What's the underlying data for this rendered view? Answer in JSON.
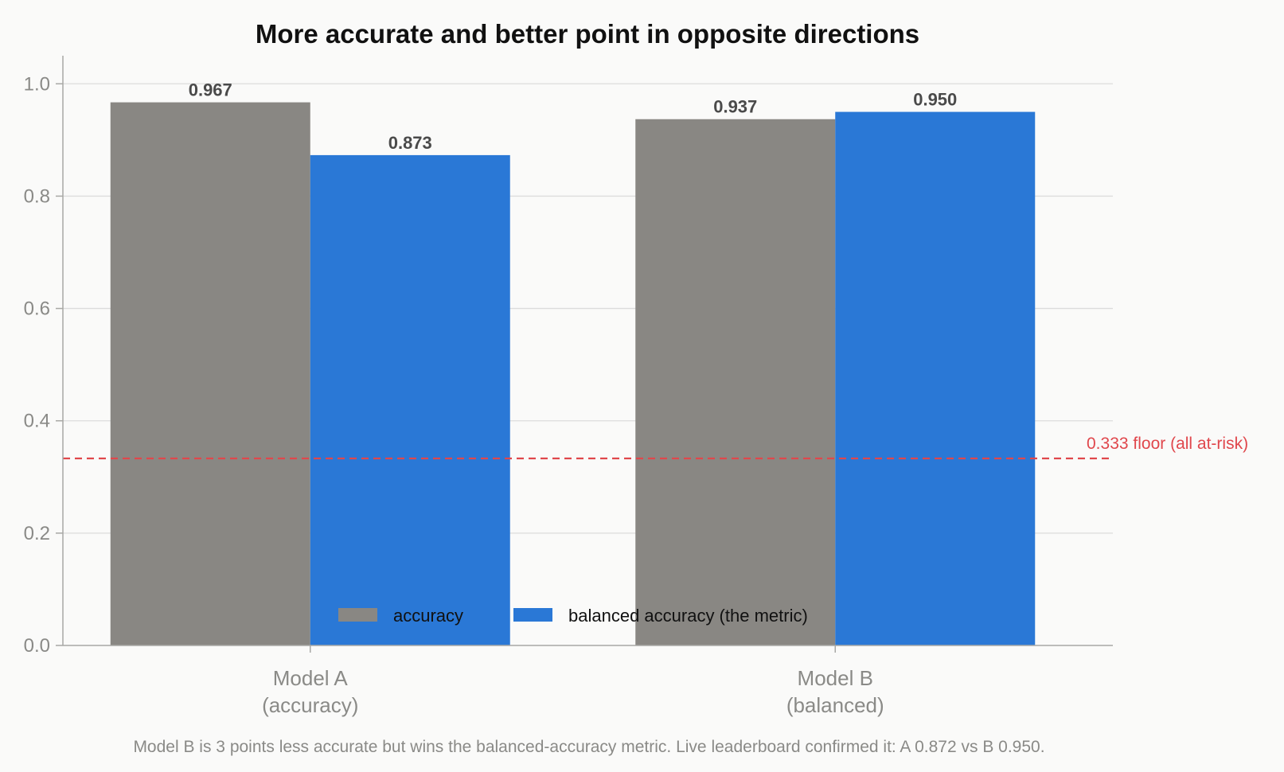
{
  "colors": {
    "accuracy": "#898783",
    "balanced": "#2a78d6",
    "reference": "#e0474c",
    "grid": "#dcdcdc",
    "axis": "#a8a8a5"
  },
  "chart_data": {
    "type": "bar",
    "title": "More accurate and better point in opposite directions",
    "categories": [
      [
        "Model A",
        "(accuracy)"
      ],
      [
        "Model B",
        "(balanced)"
      ]
    ],
    "series": [
      {
        "name": "accuracy",
        "values": [
          0.967,
          0.937
        ],
        "labels": [
          "0.967",
          "0.937"
        ]
      },
      {
        "name": "balanced accuracy (the metric)",
        "values": [
          0.873,
          0.95
        ],
        "labels": [
          "0.873",
          "0.950"
        ]
      }
    ],
    "ylim": [
      0,
      1.05
    ],
    "yticks": [
      0.0,
      0.2,
      0.4,
      0.6,
      0.8,
      1.0
    ],
    "ytick_labels": [
      "0.0",
      "0.2",
      "0.4",
      "0.6",
      "0.8",
      "1.0"
    ],
    "grid": true,
    "legend_position": "bottom-center",
    "reference_line": {
      "value": 0.333,
      "label": "0.333 floor (all at-risk)"
    },
    "footnote": "Model B is 3 points less accurate but wins the balanced-accuracy metric. Live leaderboard confirmed it: A 0.872 vs B 0.950."
  }
}
